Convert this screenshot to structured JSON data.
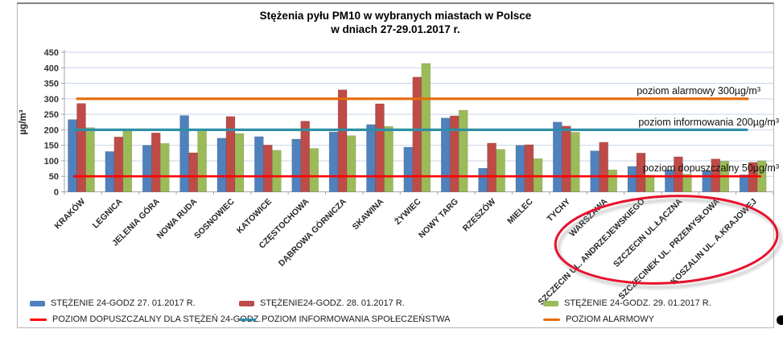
{
  "chart_data": {
    "type": "bar",
    "title": "Stężenia pyłu PM10 w wybranych miastach w Polsce",
    "subtitle": "w dniach 27-29.01.2017 r.",
    "ylabel": "µg/m³",
    "ylim": [
      0,
      450
    ],
    "ytick_step": 50,
    "yticks": [
      0,
      50,
      100,
      150,
      200,
      250,
      300,
      350,
      400,
      450
    ],
    "grid": true,
    "legend_position": "bottom",
    "categories": [
      "KRAKÓW",
      "LEGNICA",
      "JELENIA GÓRA",
      "NOWA RUDA",
      "SOSNOWIEC",
      "KATOWICE",
      "CZĘSTOCHOWA",
      "DĄBROWA GÓRNICZA",
      "SKAWINA",
      "ŻYWIEC",
      "NOWY TARG",
      "RZESZÓW",
      "MIELEC",
      "TYCHY",
      "WARSZAWA",
      "SZCZECIN UL. ANDRZEJEWSKIEGO",
      "SZCZECIN UL.ŁĄCZNA",
      "SZCZECINEK UL. PRZEMYSŁOWA",
      "KOSZALIN UL. A.KRAJOWEJ"
    ],
    "series": [
      {
        "name": "STĘŻENIE 24-GODZ 27. 01.2017 R.",
        "color": "#4F81BD",
        "values": [
          233,
          130,
          150,
          246,
          173,
          178,
          170,
          193,
          217,
          144,
          238,
          76,
          150,
          225,
          132,
          82,
          71,
          69,
          55
        ]
      },
      {
        "name": "STĘŻENIE24-GODZ. 28. 01.2017 R.",
        "color": "#BE4B48",
        "values": [
          285,
          177,
          190,
          126,
          243,
          151,
          228,
          329,
          284,
          370,
          245,
          157,
          152,
          212,
          160,
          125,
          113,
          106,
          95
        ]
      },
      {
        "name": "STĘŻENIE 24-GODZ. 29. 01.2017 R.",
        "color": "#9BBB59",
        "values": [
          207,
          198,
          156,
          198,
          188,
          134,
          140,
          181,
          211,
          414,
          263,
          137,
          107,
          192,
          71,
          54,
          57,
          99,
          100
        ]
      }
    ],
    "ref_lines": [
      {
        "value": 50,
        "color": "#FF0000",
        "label": "poziom dopuszczalny 50µg/m³",
        "legend": "POZIOM DOPUSZCZALNY DLA STĘŻEŃ 24-GODZ."
      },
      {
        "value": 200,
        "color": "#2E8FA6",
        "label": "poziom informowania 200µg/m³",
        "legend": "POZIOM INFORMOWANIA SPOŁECZEŃSTWA"
      },
      {
        "value": 300,
        "color": "#E46C0A",
        "label": "poziom alarmowy 300µg/m³",
        "legend": "POZIOM ALARMOWY"
      }
    ],
    "annotation": {
      "shape": "ellipse",
      "color": "#E8112D",
      "circled_categories": [
        "SZCZECIN UL. ANDRZEJEWSKIEGO",
        "SZCZECIN UL.ŁĄCZNA",
        "SZCZECINEK UL. PRZEMYSŁOWA",
        "KOSZALIN UL. A.KRAJOWEJ"
      ]
    }
  }
}
